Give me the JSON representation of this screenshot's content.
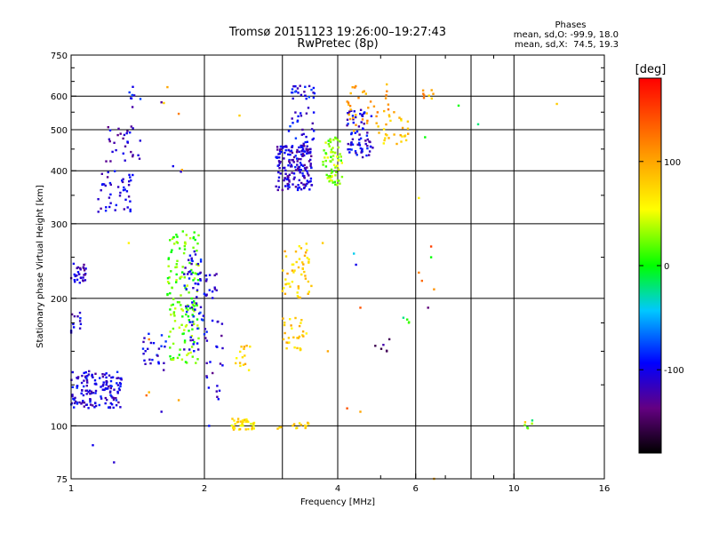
{
  "chart_data": {
    "type": "scatter",
    "title": "Tromsø 20151123 19:26:00–19:27:43",
    "subtitle": "RwPretec (8p)",
    "xlabel": "Frequency [MHz]",
    "ylabel": "Stationary phase Virtual Height [km]",
    "x_scale": "log",
    "y_scale": "log",
    "xlim": [
      1,
      16
    ],
    "ylim": [
      75,
      750
    ],
    "x_ticks": [
      1,
      2,
      4,
      6,
      10,
      16
    ],
    "x_grid": [
      2,
      3,
      4,
      6,
      8,
      10,
      16
    ],
    "x_minor": [
      5,
      7,
      9
    ],
    "y_ticks": [
      75,
      100,
      200,
      300,
      400,
      500,
      600,
      750
    ],
    "y_grid": [
      100,
      200,
      300,
      400,
      500,
      600
    ],
    "grid": true,
    "phase_info": {
      "title": "Phases",
      "line1": "mean, sd,O: -99.9, 18.0",
      "line2": "mean, sd,X:  74.5, 19.3"
    },
    "colorbar": {
      "label": "[deg]",
      "min": -180,
      "max": 180,
      "ticks": [
        100,
        0,
        -100
      ],
      "ticks_labels": [
        "100",
        "0",
        "-100"
      ]
    },
    "clusters": [
      {
        "x": [
          1.0,
          1.08
        ],
        "y": [
          215,
          245
        ],
        "phase": -110,
        "n": 30
      },
      {
        "x": [
          1.0,
          1.06
        ],
        "y": [
          160,
          185
        ],
        "phase": -110,
        "n": 12
      },
      {
        "x": [
          1.0,
          1.3
        ],
        "y": [
          110,
          135
        ],
        "phase": -105,
        "n": 150
      },
      {
        "x": [
          1.15,
          1.38
        ],
        "y": [
          320,
          400
        ],
        "phase": -110,
        "n": 45
      },
      {
        "x": [
          1.2,
          1.45
        ],
        "y": [
          420,
          520
        ],
        "phase": -110,
        "n": 30
      },
      {
        "x": [
          1.35,
          1.45
        ],
        "y": [
          560,
          640
        ],
        "phase": -100,
        "n": 8
      },
      {
        "x": [
          1.45,
          1.65
        ],
        "y": [
          135,
          165
        ],
        "phase": -100,
        "n": 25
      },
      {
        "x": [
          1.65,
          1.95
        ],
        "y": [
          140,
          290
        ],
        "phase": 20,
        "n": 150
      },
      {
        "x": [
          1.8,
          2.0
        ],
        "y": [
          150,
          260
        ],
        "phase": -100,
        "n": 60
      },
      {
        "x": [
          2.0,
          2.15
        ],
        "y": [
          200,
          230
        ],
        "phase": -100,
        "n": 15
      },
      {
        "x": [
          2.0,
          2.2
        ],
        "y": [
          115,
          180
        ],
        "phase": -110,
        "n": 25
      },
      {
        "x": [
          2.3,
          2.6
        ],
        "y": [
          98,
          104
        ],
        "phase": 70,
        "n": 40
      },
      {
        "x": [
          2.35,
          2.55
        ],
        "y": [
          135,
          155
        ],
        "phase": 80,
        "n": 15
      },
      {
        "x": [
          2.9,
          3.5
        ],
        "y": [
          98,
          102
        ],
        "phase": 75,
        "n": 15
      },
      {
        "x": [
          3.0,
          3.5
        ],
        "y": [
          200,
          270
        ],
        "phase": 80,
        "n": 50
      },
      {
        "x": [
          3.0,
          3.4
        ],
        "y": [
          150,
          180
        ],
        "phase": 80,
        "n": 30
      },
      {
        "x": [
          2.9,
          3.5
        ],
        "y": [
          360,
          460
        ],
        "phase": -110,
        "n": 180
      },
      {
        "x": [
          3.1,
          3.55
        ],
        "y": [
          460,
          640
        ],
        "phase": -100,
        "n": 50
      },
      {
        "x": [
          3.7,
          4.1
        ],
        "y": [
          370,
          480
        ],
        "phase": 30,
        "n": 70
      },
      {
        "x": [
          4.2,
          4.8
        ],
        "y": [
          430,
          560
        ],
        "phase": -105,
        "n": 70
      },
      {
        "x": [
          4.2,
          5.3
        ],
        "y": [
          480,
          640
        ],
        "phase": 100,
        "n": 40
      },
      {
        "x": [
          5.0,
          5.8
        ],
        "y": [
          460,
          560
        ],
        "phase": 80,
        "n": 25
      },
      {
        "x": [
          6.2,
          6.6
        ],
        "y": [
          580,
          620
        ],
        "phase": 100,
        "n": 8
      },
      {
        "x": [
          4.8,
          5.3
        ],
        "y": [
          150,
          170
        ],
        "phase": -140,
        "n": 6
      },
      {
        "x": [
          5.5,
          5.8
        ],
        "y": [
          170,
          180
        ],
        "phase": 0,
        "n": 4
      },
      {
        "x": [
          10.5,
          11.0
        ],
        "y": [
          98,
          102
        ],
        "phase": 20,
        "n": 4
      }
    ],
    "points": [
      [
        1.12,
        90,
        -100
      ],
      [
        1.25,
        82,
        -110
      ],
      [
        1.62,
        578,
        80
      ],
      [
        1.65,
        630,
        100
      ],
      [
        1.6,
        580,
        -130
      ],
      [
        1.75,
        545,
        120
      ],
      [
        2.4,
        540,
        80
      ],
      [
        7.5,
        570,
        0
      ],
      [
        8.3,
        515,
        -20
      ],
      [
        12.5,
        575,
        80
      ],
      [
        6.3,
        480,
        0
      ],
      [
        6.1,
        345,
        60
      ],
      [
        6.1,
        230,
        120
      ],
      [
        6.2,
        220,
        130
      ],
      [
        6.5,
        265,
        150
      ],
      [
        6.5,
        250,
        0
      ],
      [
        6.6,
        210,
        110
      ],
      [
        6.4,
        190,
        -140
      ],
      [
        4.5,
        190,
        140
      ],
      [
        4.4,
        240,
        -100
      ],
      [
        4.35,
        255,
        -40
      ],
      [
        3.7,
        270,
        80
      ],
      [
        4.2,
        110,
        140
      ],
      [
        4.5,
        108,
        100
      ],
      [
        3.8,
        150,
        100
      ],
      [
        1.75,
        115,
        100
      ],
      [
        1.48,
        118,
        130
      ],
      [
        1.5,
        120,
        90
      ],
      [
        1.6,
        108,
        -110
      ],
      [
        1.35,
        270,
        60
      ],
      [
        1.7,
        410,
        -100
      ],
      [
        1.78,
        402,
        100
      ],
      [
        1.77,
        398,
        -110
      ],
      [
        6.6,
        75,
        100
      ],
      [
        1.5,
        160,
        120
      ],
      [
        2.05,
        100,
        -90
      ],
      [
        11.0,
        103,
        -20
      ],
      [
        10.6,
        102,
        80
      ]
    ]
  }
}
